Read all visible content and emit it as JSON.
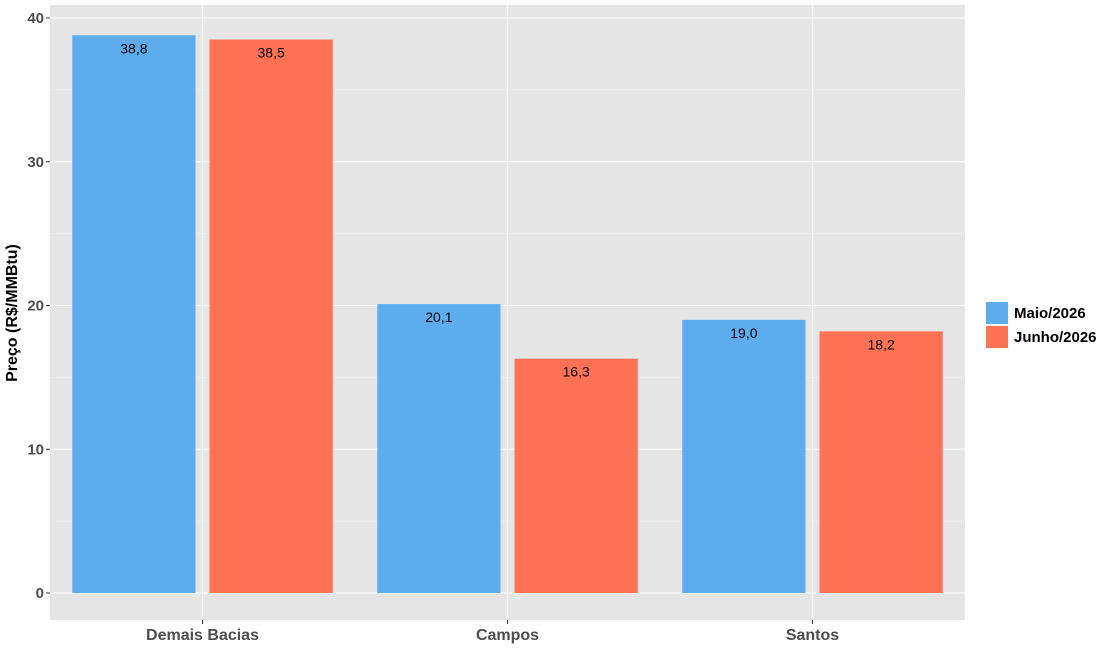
{
  "chart_data": {
    "type": "bar",
    "categories": [
      "Demais Bacias",
      "Campos",
      "Santos"
    ],
    "series": [
      {
        "name": "Maio/2026",
        "values": [
          38.8,
          20.1,
          19.0
        ],
        "labels": [
          "38,8",
          "20,1",
          "19,0"
        ],
        "color": "#5DADEE"
      },
      {
        "name": "Junho/2026",
        "values": [
          38.5,
          16.3,
          18.2
        ],
        "labels": [
          "38,5",
          "16,3",
          "18,2"
        ],
        "color": "#FF7256"
      }
    ],
    "ylabel": "Preço (R$/MMBtu)",
    "xlabel": "",
    "ylim": [
      0,
      40
    ],
    "yticks": [
      0,
      10,
      20,
      30,
      40
    ],
    "grid": true,
    "legend_position": "right",
    "panel_background": "#E5E5E5"
  }
}
